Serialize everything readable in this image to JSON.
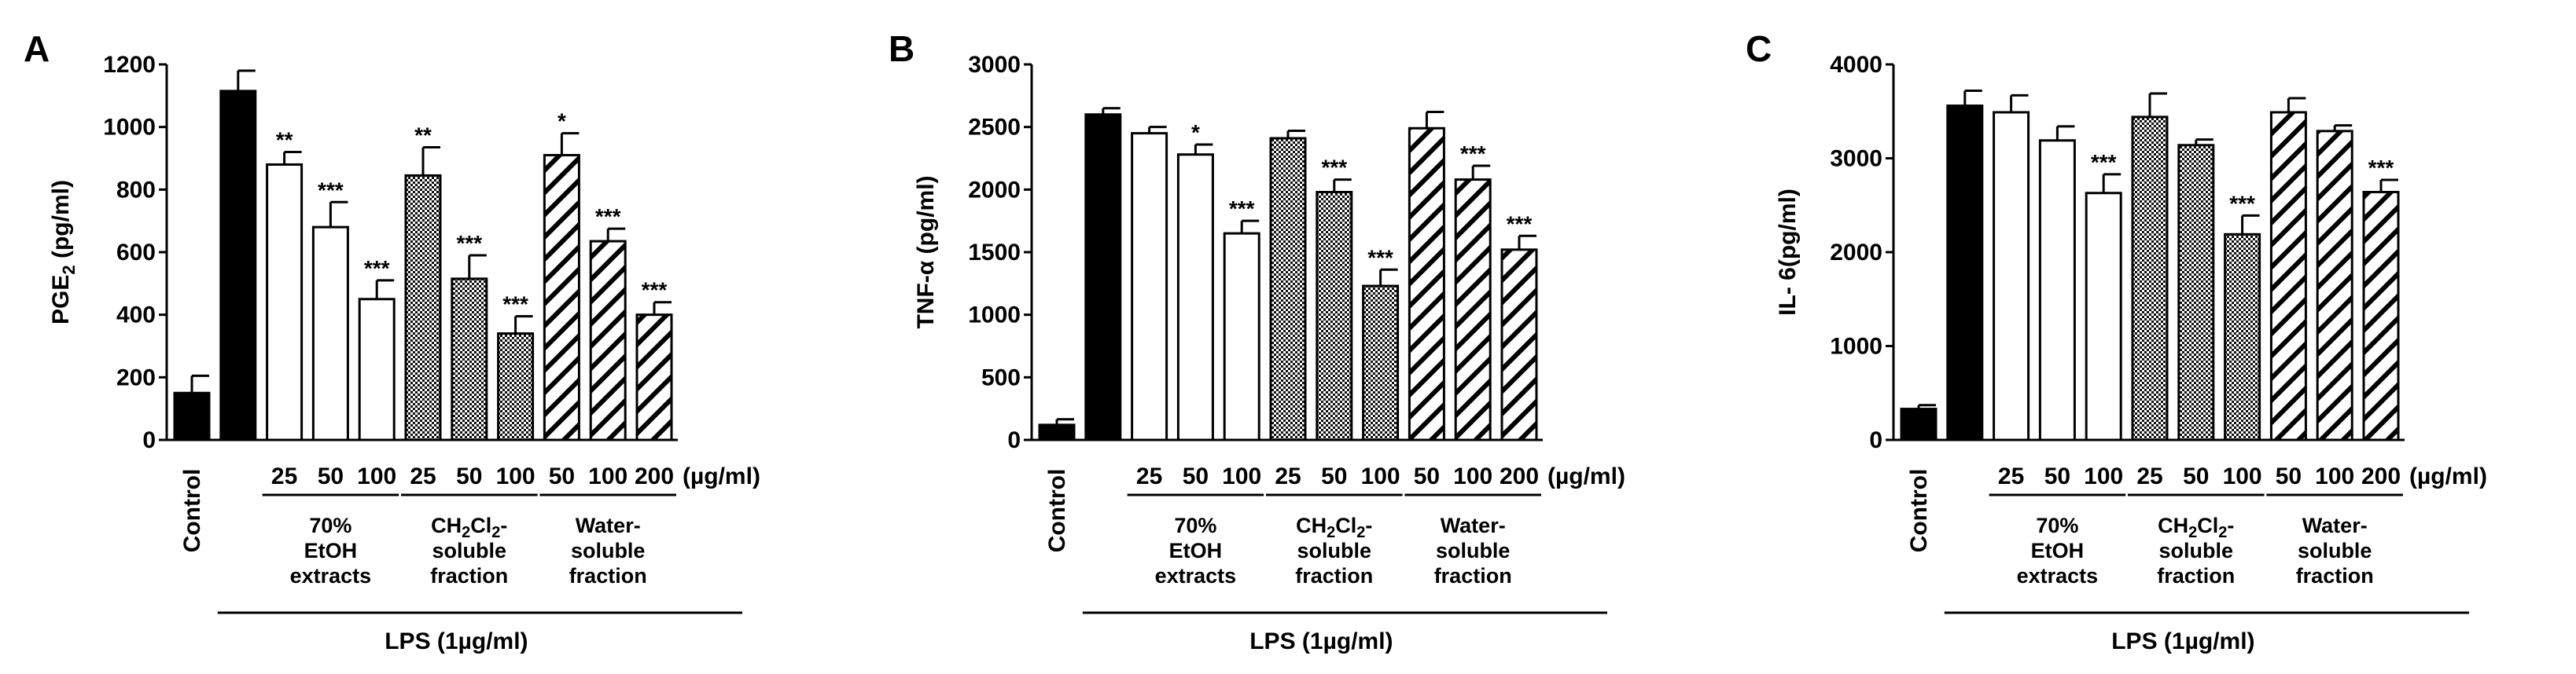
{
  "figure": {
    "lps_label": "LPS (1µg/ml)",
    "dose_unit": "(µg/ml)",
    "control_label": "Control",
    "group_labels": [
      [
        "70%",
        "EtOH",
        "extracts"
      ],
      [
        "CH2Cl2-",
        "soluble",
        "fraction"
      ],
      [
        "Water-",
        "soluble",
        "fraction"
      ]
    ],
    "group_label_main": [
      "70% EtOH extracts",
      "CH2Cl2-soluble fraction",
      "Water-soluble fraction"
    ]
  },
  "chart_data": [
    {
      "type": "bar",
      "panel": "A",
      "ylabel": "PGE2 (pg/ml)",
      "ylabel_main": "PGE",
      "ylabel_sub": "2",
      "ylabel_rest": " (pg/ml)",
      "ylim": [
        0,
        1200
      ],
      "yticks": [
        "0",
        "200",
        "400",
        "600",
        "800",
        "1000",
        "1200"
      ],
      "dose_labels": [
        "25",
        "50",
        "100",
        "25",
        "50",
        "100",
        "50",
        "100",
        "200"
      ],
      "bars": [
        {
          "group": "Control",
          "dose": "",
          "value": 150,
          "error": 55,
          "fill": "black",
          "sig": ""
        },
        {
          "group": "LPS",
          "dose": "",
          "value": 1115,
          "error": 65,
          "fill": "black",
          "sig": ""
        },
        {
          "group": "70% EtOH extracts",
          "dose": "25",
          "value": 880,
          "error": 40,
          "fill": "white",
          "sig": "**"
        },
        {
          "group": "70% EtOH extracts",
          "dose": "50",
          "value": 680,
          "error": 80,
          "fill": "white",
          "sig": "***"
        },
        {
          "group": "70% EtOH extracts",
          "dose": "100",
          "value": 450,
          "error": 60,
          "fill": "white",
          "sig": "***"
        },
        {
          "group": "CH2Cl2-soluble fraction",
          "dose": "25",
          "value": 845,
          "error": 90,
          "fill": "checker",
          "sig": "**"
        },
        {
          "group": "CH2Cl2-soluble fraction",
          "dose": "50",
          "value": 515,
          "error": 75,
          "fill": "checker",
          "sig": "***"
        },
        {
          "group": "CH2Cl2-soluble fraction",
          "dose": "100",
          "value": 340,
          "error": 55,
          "fill": "checker",
          "sig": "***"
        },
        {
          "group": "Water-soluble fraction",
          "dose": "50",
          "value": 910,
          "error": 70,
          "fill": "hatch",
          "sig": "*"
        },
        {
          "group": "Water-soluble fraction",
          "dose": "100",
          "value": 635,
          "error": 40,
          "fill": "hatch",
          "sig": "***"
        },
        {
          "group": "Water-soluble fraction",
          "dose": "200",
          "value": 400,
          "error": 40,
          "fill": "hatch",
          "sig": "***"
        }
      ]
    },
    {
      "type": "bar",
      "panel": "B",
      "ylabel": "TNF-α (pg/ml)",
      "ylabel_main": "TNF-α (pg/ml)",
      "ylabel_sub": "",
      "ylabel_rest": "",
      "ylim": [
        0,
        3000
      ],
      "yticks": [
        "0",
        "500",
        "1000",
        "1500",
        "2000",
        "2500",
        "3000"
      ],
      "dose_labels": [
        "25",
        "50",
        "100",
        "25",
        "50",
        "100",
        "50",
        "100",
        "200"
      ],
      "bars": [
        {
          "group": "Control",
          "dose": "",
          "value": 120,
          "error": 45,
          "fill": "black",
          "sig": ""
        },
        {
          "group": "LPS",
          "dose": "",
          "value": 2600,
          "error": 50,
          "fill": "black",
          "sig": ""
        },
        {
          "group": "70% EtOH extracts",
          "dose": "25",
          "value": 2450,
          "error": 50,
          "fill": "white",
          "sig": ""
        },
        {
          "group": "70% EtOH extracts",
          "dose": "50",
          "value": 2280,
          "error": 80,
          "fill": "white",
          "sig": "*"
        },
        {
          "group": "70% EtOH extracts",
          "dose": "100",
          "value": 1650,
          "error": 100,
          "fill": "white",
          "sig": "***"
        },
        {
          "group": "CH2Cl2-soluble fraction",
          "dose": "25",
          "value": 2410,
          "error": 60,
          "fill": "checker",
          "sig": ""
        },
        {
          "group": "CH2Cl2-soluble fraction",
          "dose": "50",
          "value": 1980,
          "error": 100,
          "fill": "checker",
          "sig": "***"
        },
        {
          "group": "CH2Cl2-soluble fraction",
          "dose": "100",
          "value": 1230,
          "error": 130,
          "fill": "checker",
          "sig": "***"
        },
        {
          "group": "Water-soluble fraction",
          "dose": "50",
          "value": 2490,
          "error": 130,
          "fill": "hatch",
          "sig": ""
        },
        {
          "group": "Water-soluble fraction",
          "dose": "100",
          "value": 2080,
          "error": 110,
          "fill": "hatch",
          "sig": "***"
        },
        {
          "group": "Water-soluble fraction",
          "dose": "200",
          "value": 1520,
          "error": 110,
          "fill": "hatch",
          "sig": "***"
        }
      ]
    },
    {
      "type": "bar",
      "panel": "C",
      "ylabel": "IL- 6(pg/ml)",
      "ylabel_main": "IL- 6(pg/ml)",
      "ylabel_sub": "",
      "ylabel_rest": "",
      "ylim": [
        0,
        4000
      ],
      "yticks": [
        "0",
        "1000",
        "2000",
        "3000",
        "4000"
      ],
      "dose_labels": [
        "25",
        "50",
        "100",
        "25",
        "50",
        "100",
        "50",
        "100",
        "200"
      ],
      "bars": [
        {
          "group": "Control",
          "dose": "",
          "value": 330,
          "error": 40,
          "fill": "black",
          "sig": ""
        },
        {
          "group": "LPS",
          "dose": "",
          "value": 3560,
          "error": 160,
          "fill": "black",
          "sig": ""
        },
        {
          "group": "70% EtOH extracts",
          "dose": "25",
          "value": 3490,
          "error": 180,
          "fill": "white",
          "sig": ""
        },
        {
          "group": "70% EtOH extracts",
          "dose": "50",
          "value": 3190,
          "error": 150,
          "fill": "white",
          "sig": ""
        },
        {
          "group": "70% EtOH extracts",
          "dose": "100",
          "value": 2630,
          "error": 200,
          "fill": "white",
          "sig": "***"
        },
        {
          "group": "CH2Cl2-soluble fraction",
          "dose": "25",
          "value": 3440,
          "error": 250,
          "fill": "checker",
          "sig": ""
        },
        {
          "group": "CH2Cl2-soluble fraction",
          "dose": "50",
          "value": 3140,
          "error": 60,
          "fill": "checker",
          "sig": ""
        },
        {
          "group": "CH2Cl2-soluble fraction",
          "dose": "100",
          "value": 2190,
          "error": 200,
          "fill": "checker",
          "sig": "***"
        },
        {
          "group": "Water-soluble fraction",
          "dose": "50",
          "value": 3490,
          "error": 150,
          "fill": "hatch",
          "sig": ""
        },
        {
          "group": "Water-soluble fraction",
          "dose": "100",
          "value": 3290,
          "error": 60,
          "fill": "hatch",
          "sig": ""
        },
        {
          "group": "Water-soluble fraction",
          "dose": "200",
          "value": 2640,
          "error": 130,
          "fill": "hatch",
          "sig": "***"
        }
      ]
    }
  ]
}
